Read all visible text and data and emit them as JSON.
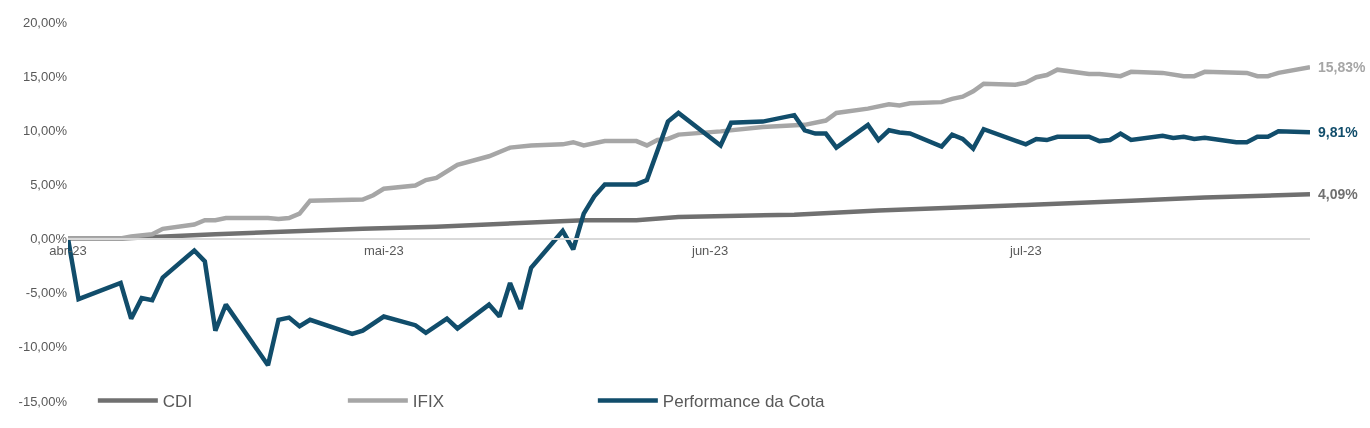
{
  "chart_data": {
    "type": "line",
    "xlim": [
      "2023-04-01",
      "2023-07-28"
    ],
    "xticks": [
      {
        "value": "2023-04-01",
        "label": "abr-23"
      },
      {
        "value": "2023-05-01",
        "label": "mai-23"
      },
      {
        "value": "2023-06-01",
        "label": "jun-23"
      },
      {
        "value": "2023-07-01",
        "label": "jul-23"
      }
    ],
    "ylim": [
      -15,
      20
    ],
    "yticks": [
      {
        "value": -15,
        "label": "-15,00%"
      },
      {
        "value": -10,
        "label": "-10,00%"
      },
      {
        "value": -5,
        "label": "-5,00%"
      },
      {
        "value": 0,
        "label": "0,00%"
      },
      {
        "value": 5,
        "label": "5,00%"
      },
      {
        "value": 10,
        "label": "10,00%"
      },
      {
        "value": 15,
        "label": "15,00%"
      },
      {
        "value": 20,
        "label": "20,00%"
      }
    ],
    "legend": "bottom left",
    "series": [
      {
        "name": "CDI",
        "color": "#707070",
        "x": [
          "2023-04-01",
          "2023-04-06",
          "2023-04-15",
          "2023-04-29",
          "2023-05-06",
          "2023-05-20",
          "2023-05-25",
          "2023-05-29",
          "2023-06-09",
          "2023-06-17",
          "2023-07-01",
          "2023-07-11",
          "2023-07-18",
          "2023-07-28"
        ],
        "values": [
          0,
          0,
          0.4,
          0.9,
          1.1,
          1.7,
          1.7,
          2.0,
          2.2,
          2.6,
          3.1,
          3.5,
          3.8,
          4.09
        ]
      },
      {
        "name": "IFIX",
        "color": "#a6a6a6",
        "x": [
          "2023-04-01",
          "2023-04-06",
          "2023-04-07",
          "2023-04-09",
          "2023-04-10",
          "2023-04-13",
          "2023-04-14",
          "2023-04-15",
          "2023-04-16",
          "2023-04-20",
          "2023-04-21",
          "2023-04-22",
          "2023-04-23",
          "2023-04-24",
          "2023-04-29",
          "2023-04-30",
          "2023-05-01",
          "2023-05-04",
          "2023-05-05",
          "2023-05-06",
          "2023-05-08",
          "2023-05-11",
          "2023-05-13",
          "2023-05-15",
          "2023-05-18",
          "2023-05-19",
          "2023-05-20",
          "2023-05-22",
          "2023-05-25",
          "2023-05-26",
          "2023-05-27",
          "2023-05-28",
          "2023-05-29",
          "2023-06-02",
          "2023-06-06",
          "2023-06-10",
          "2023-06-12",
          "2023-06-13",
          "2023-06-16",
          "2023-06-18",
          "2023-06-19",
          "2023-06-20",
          "2023-06-23",
          "2023-06-24",
          "2023-06-25",
          "2023-06-26",
          "2023-06-27",
          "2023-06-30",
          "2023-07-01",
          "2023-07-02",
          "2023-07-03",
          "2023-07-04",
          "2023-07-07",
          "2023-07-08",
          "2023-07-10",
          "2023-07-11",
          "2023-07-14",
          "2023-07-16",
          "2023-07-17",
          "2023-07-18",
          "2023-07-22",
          "2023-07-23",
          "2023-07-24",
          "2023-07-25",
          "2023-07-28"
        ],
        "values": [
          0,
          0,
          0.2,
          0.4,
          0.9,
          1.3,
          1.7,
          1.7,
          1.9,
          1.9,
          1.8,
          1.9,
          2.3,
          3.5,
          3.6,
          4.0,
          4.6,
          4.9,
          5.4,
          5.6,
          6.8,
          7.6,
          8.4,
          8.6,
          8.7,
          8.9,
          8.6,
          9.0,
          9.0,
          8.6,
          9.1,
          9.2,
          9.6,
          9.9,
          10.3,
          10.5,
          10.9,
          11.6,
          12.0,
          12.4,
          12.3,
          12.5,
          12.6,
          12.9,
          13.1,
          13.6,
          14.3,
          14.2,
          14.4,
          14.9,
          15.1,
          15.6,
          15.2,
          15.2,
          15.0,
          15.4,
          15.3,
          15.0,
          15.0,
          15.4,
          15.3,
          15.0,
          15.0,
          15.3,
          15.83
        ]
      },
      {
        "name": "Performance da Cota",
        "color": "#114d6b",
        "x": [
          "2023-04-01",
          "2023-04-02",
          "2023-04-06",
          "2023-04-07",
          "2023-04-08",
          "2023-04-09",
          "2023-04-10",
          "2023-04-13",
          "2023-04-14",
          "2023-04-15",
          "2023-04-16",
          "2023-04-20",
          "2023-04-21",
          "2023-04-22",
          "2023-04-23",
          "2023-04-24",
          "2023-04-28",
          "2023-04-29",
          "2023-05-01",
          "2023-05-04",
          "2023-05-05",
          "2023-05-07",
          "2023-05-08",
          "2023-05-11",
          "2023-05-12",
          "2023-05-13",
          "2023-05-14",
          "2023-05-15",
          "2023-05-18",
          "2023-05-19",
          "2023-05-20",
          "2023-05-21",
          "2023-05-22",
          "2023-05-25",
          "2023-05-26",
          "2023-05-28",
          "2023-05-29",
          "2023-06-02",
          "2023-06-03",
          "2023-06-06",
          "2023-06-09",
          "2023-06-10",
          "2023-06-11",
          "2023-06-12",
          "2023-06-13",
          "2023-06-16",
          "2023-06-17",
          "2023-06-18",
          "2023-06-19",
          "2023-06-20",
          "2023-06-23",
          "2023-06-24",
          "2023-06-25",
          "2023-06-26",
          "2023-06-27",
          "2023-07-01",
          "2023-07-02",
          "2023-07-03",
          "2023-07-04",
          "2023-07-07",
          "2023-07-08",
          "2023-07-09",
          "2023-07-10",
          "2023-07-11",
          "2023-07-14",
          "2023-07-15",
          "2023-07-16",
          "2023-07-17",
          "2023-07-18",
          "2023-07-21",
          "2023-07-22",
          "2023-07-23",
          "2023-07-24",
          "2023-07-25",
          "2023-07-28"
        ],
        "values": [
          0,
          -5.6,
          -4.1,
          -7.4,
          -5.5,
          -5.7,
          -3.6,
          -1.1,
          -2.1,
          -8.5,
          -6.1,
          -11.7,
          -7.5,
          -7.3,
          -8.1,
          -7.5,
          -8.8,
          -8.5,
          -7.2,
          -8.0,
          -8.7,
          -7.4,
          -8.3,
          -6.1,
          -7.2,
          -4.1,
          -6.5,
          -2.7,
          0.7,
          -1.0,
          2.3,
          3.9,
          5.0,
          5.0,
          5.4,
          10.8,
          11.6,
          8.6,
          10.7,
          10.8,
          11.4,
          10.0,
          9.7,
          9.7,
          8.4,
          10.5,
          9.1,
          10.0,
          9.8,
          9.7,
          8.5,
          9.6,
          9.2,
          8.3,
          10.1,
          8.7,
          9.2,
          9.1,
          9.4,
          9.4,
          9.0,
          9.1,
          9.7,
          9.1,
          9.5,
          9.3,
          9.4,
          9.2,
          9.3,
          8.9,
          8.9,
          9.4,
          9.4,
          9.9,
          9.81
        ]
      }
    ],
    "annotations": [
      {
        "text": "15,83%",
        "x": "2023-07-28",
        "y": 15.83
      },
      {
        "text": "9,81%",
        "x": "2023-07-28",
        "y": 9.81
      },
      {
        "text": "4,09%",
        "x": "2023-07-28",
        "y": 4.09
      }
    ]
  }
}
